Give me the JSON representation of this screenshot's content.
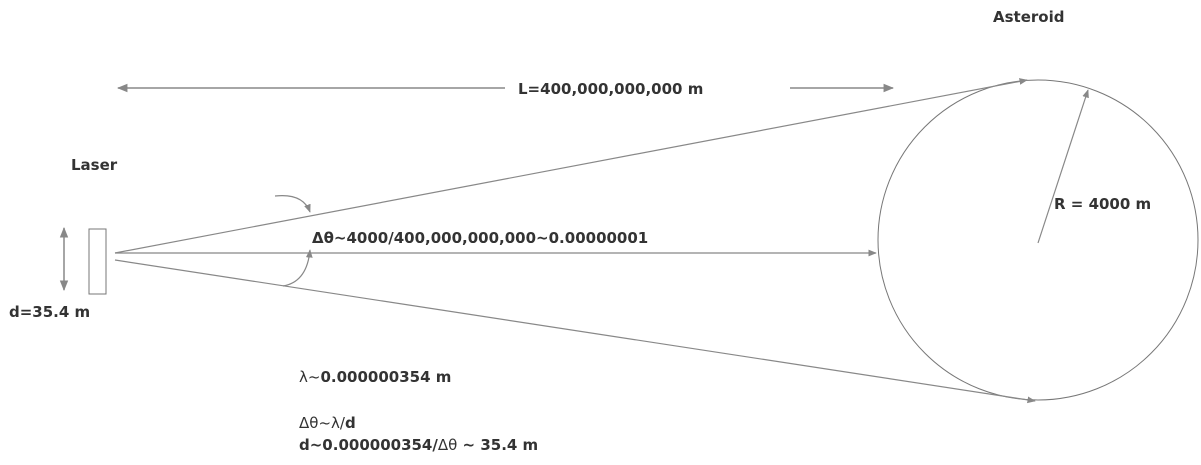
{
  "labels": {
    "asteroid": "Asteroid",
    "laser": "Laser",
    "distance": "L=400,000,000,000 m",
    "radius": "R = 4000 m",
    "angle": "Δθ~4000/400,000,000,000~0.00000001",
    "aperture": "d=35.4 m",
    "wavelength_symbol": "λ~",
    "wavelength_value": "0.000000354 m",
    "diffraction_symbol": "Δθ~λ/",
    "diffraction_d": "d",
    "result_prefix": "d~0.000000354/",
    "result_symbol": "Δθ",
    "result_suffix": " ~ 35.4 m"
  },
  "colors": {
    "line": "#888888",
    "circle": "#777777",
    "text": "#333333"
  }
}
